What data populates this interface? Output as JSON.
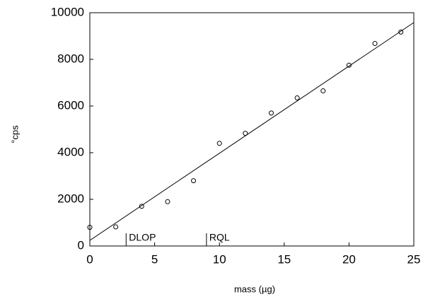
{
  "chart_data": {
    "type": "scatter",
    "x_label": "mass (µg)",
    "y_label": "°cps",
    "series": [
      {
        "x": [
          0,
          2,
          4,
          6,
          8,
          10,
          12,
          14,
          16,
          18,
          20,
          22,
          24
        ],
        "values": [
          800,
          820,
          1700,
          1900,
          2800,
          4400,
          4830,
          5700,
          6350,
          6650,
          7750,
          8680,
          9170
        ],
        "color": "#000000"
      }
    ],
    "fit": {
      "x": [
        0,
        25
      ],
      "values": [
        240,
        9580
      ],
      "color": "#000000"
    },
    "annotations": [
      {
        "text": "DLOP",
        "x": 2.8
      },
      {
        "text": "RQL",
        "x": 9
      }
    ],
    "xlim": [
      0,
      25
    ],
    "xticks": [
      0,
      5,
      10,
      15,
      20,
      25
    ],
    "ylim": [
      0,
      10000
    ],
    "yticks": [
      0,
      2000,
      4000,
      6000,
      8000,
      10000
    ]
  }
}
